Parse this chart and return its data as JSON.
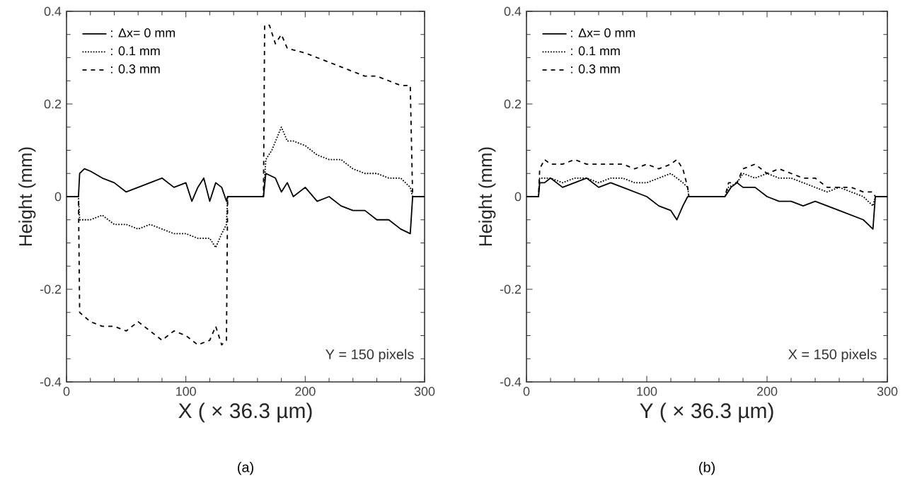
{
  "chart_data": [
    {
      "type": "line",
      "xlabel": "X ( × 36.3 µm)",
      "ylabel": "Height (mm)",
      "xlim": [
        0,
        300
      ],
      "ylim": [
        -0.4,
        0.4
      ],
      "xticks": [
        0,
        100,
        200,
        300
      ],
      "yticks": [
        -0.4,
        -0.2,
        0,
        0.2,
        0.4
      ],
      "legend": "top left",
      "grid": false,
      "annotations": [
        "Y = 150 pixels",
        "(a)"
      ],
      "series": [
        {
          "name": ": Δx= 0 mm",
          "color": "#000000",
          "line_style": "solid",
          "x": [
            0,
            10,
            11,
            15,
            20,
            30,
            40,
            50,
            60,
            70,
            80,
            90,
            100,
            105,
            110,
            115,
            120,
            125,
            130,
            134,
            135,
            165,
            167,
            175,
            180,
            185,
            190,
            200,
            210,
            220,
            230,
            240,
            250,
            260,
            270,
            280,
            288,
            290,
            300
          ],
          "values": [
            0,
            0,
            0.05,
            0.06,
            0.055,
            0.04,
            0.03,
            0.01,
            0.02,
            0.03,
            0.04,
            0.02,
            0.03,
            -0.01,
            0.02,
            0.04,
            -0.01,
            0.03,
            0.02,
            -0.01,
            0,
            0,
            0.05,
            0.04,
            0.01,
            0.03,
            0.0,
            0.02,
            -0.01,
            0.0,
            -0.02,
            -0.03,
            -0.03,
            -0.05,
            -0.05,
            -0.07,
            -0.08,
            0,
            0
          ]
        },
        {
          "name": ": 0.1 mm",
          "color": "#000000",
          "line_style": "dotted",
          "x": [
            0,
            10,
            11,
            20,
            30,
            40,
            50,
            60,
            70,
            80,
            90,
            100,
            110,
            120,
            125,
            130,
            134,
            135,
            165,
            167,
            172,
            180,
            185,
            190,
            200,
            210,
            220,
            230,
            240,
            250,
            260,
            270,
            280,
            288,
            290,
            300
          ],
          "values": [
            0,
            0,
            -0.05,
            -0.05,
            -0.04,
            -0.06,
            -0.06,
            -0.07,
            -0.06,
            -0.07,
            -0.08,
            -0.08,
            -0.09,
            -0.09,
            -0.11,
            -0.08,
            -0.06,
            0,
            0,
            0.08,
            0.1,
            0.15,
            0.12,
            0.12,
            0.11,
            0.09,
            0.08,
            0.08,
            0.06,
            0.05,
            0.05,
            0.04,
            0.04,
            0.02,
            0,
            0
          ]
        },
        {
          "name": ": 0.3 mm",
          "color": "#000000",
          "line_style": "dashed",
          "x": [
            0,
            10,
            11,
            20,
            30,
            40,
            50,
            60,
            70,
            80,
            90,
            100,
            110,
            120,
            125,
            130,
            134,
            135,
            165,
            166,
            170,
            175,
            180,
            185,
            200,
            210,
            220,
            230,
            240,
            250,
            260,
            270,
            280,
            288,
            290,
            300
          ],
          "values": [
            0,
            0,
            -0.25,
            -0.27,
            -0.28,
            -0.28,
            -0.29,
            -0.27,
            -0.29,
            -0.31,
            -0.29,
            -0.3,
            -0.32,
            -0.31,
            -0.28,
            -0.32,
            -0.31,
            0,
            0,
            0.37,
            0.37,
            0.33,
            0.35,
            0.32,
            0.31,
            0.3,
            0.29,
            0.28,
            0.27,
            0.26,
            0.26,
            0.25,
            0.24,
            0.24,
            0,
            0
          ]
        }
      ]
    },
    {
      "type": "line",
      "xlabel": "Y ( × 36.3 µm)",
      "ylabel": "Height (mm)",
      "xlim": [
        0,
        300
      ],
      "ylim": [
        -0.4,
        0.4
      ],
      "xticks": [
        0,
        100,
        200,
        300
      ],
      "yticks": [
        -0.4,
        -0.2,
        0,
        0.2,
        0.4
      ],
      "legend": "top left",
      "grid": false,
      "annotations": [
        "X = 150 pixels",
        "(b)"
      ],
      "series": [
        {
          "name": ": Δx= 0 mm",
          "color": "#000000",
          "line_style": "solid",
          "x": [
            0,
            10,
            11,
            15,
            20,
            30,
            40,
            50,
            60,
            70,
            80,
            90,
            100,
            110,
            120,
            125,
            130,
            134,
            135,
            165,
            170,
            175,
            180,
            190,
            200,
            210,
            220,
            230,
            240,
            250,
            260,
            270,
            280,
            288,
            290,
            300
          ],
          "values": [
            0,
            0,
            0.03,
            0.03,
            0.04,
            0.02,
            0.03,
            0.04,
            0.02,
            0.03,
            0.02,
            0.01,
            0.0,
            -0.02,
            -0.03,
            -0.05,
            -0.02,
            0.0,
            0,
            0,
            0.02,
            0.03,
            0.02,
            0.02,
            0.0,
            -0.01,
            -0.01,
            -0.02,
            -0.01,
            -0.02,
            -0.03,
            -0.04,
            -0.05,
            -0.07,
            0,
            0
          ]
        },
        {
          "name": ": 0.1 mm",
          "color": "#000000",
          "line_style": "dotted",
          "x": [
            0,
            10,
            11,
            20,
            30,
            40,
            50,
            60,
            70,
            80,
            90,
            100,
            110,
            120,
            130,
            134,
            135,
            165,
            168,
            175,
            180,
            190,
            200,
            210,
            220,
            230,
            240,
            250,
            260,
            270,
            280,
            288,
            290,
            300
          ],
          "values": [
            0,
            0,
            0.04,
            0.04,
            0.03,
            0.04,
            0.04,
            0.03,
            0.04,
            0.04,
            0.03,
            0.03,
            0.04,
            0.05,
            0.03,
            0.02,
            0,
            0,
            0.02,
            0.03,
            0.05,
            0.04,
            0.05,
            0.04,
            0.04,
            0.03,
            0.02,
            0.01,
            0.02,
            0.01,
            0.0,
            -0.02,
            0,
            0
          ]
        },
        {
          "name": ": 0.3 mm",
          "color": "#000000",
          "line_style": "dashed",
          "x": [
            0,
            10,
            11,
            15,
            20,
            30,
            40,
            50,
            60,
            70,
            80,
            90,
            100,
            110,
            120,
            125,
            130,
            134,
            135,
            165,
            168,
            175,
            180,
            190,
            200,
            210,
            220,
            230,
            240,
            250,
            260,
            270,
            280,
            288,
            290,
            300
          ],
          "values": [
            0,
            0,
            0.06,
            0.08,
            0.07,
            0.07,
            0.08,
            0.07,
            0.07,
            0.07,
            0.07,
            0.06,
            0.07,
            0.06,
            0.07,
            0.08,
            0.06,
            0.02,
            0,
            0,
            0.03,
            0.03,
            0.06,
            0.07,
            0.05,
            0.06,
            0.05,
            0.04,
            0.04,
            0.02,
            0.02,
            0.02,
            0.01,
            0.01,
            0,
            0
          ]
        }
      ]
    }
  ]
}
